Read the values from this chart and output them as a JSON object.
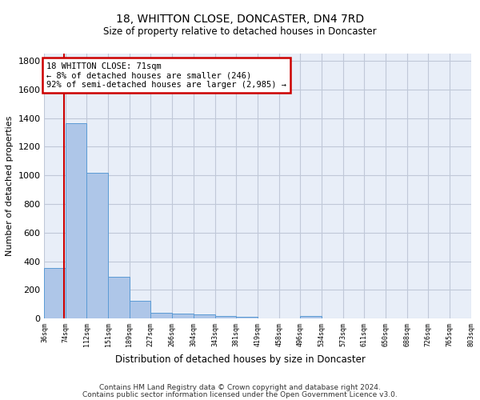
{
  "title": "18, WHITTON CLOSE, DONCASTER, DN4 7RD",
  "subtitle": "Size of property relative to detached houses in Doncaster",
  "xlabel": "Distribution of detached houses by size in Doncaster",
  "ylabel": "Number of detached properties",
  "footer_line1": "Contains HM Land Registry data © Crown copyright and database right 2024.",
  "footer_line2": "Contains public sector information licensed under the Open Government Licence v3.0.",
  "annotation_title": "18 WHITTON CLOSE: 71sqm",
  "annotation_line1": "← 8% of detached houses are smaller (246)",
  "annotation_line2": "92% of semi-detached houses are larger (2,985) →",
  "property_size": 71,
  "bar_edges": [
    36,
    74,
    112,
    151,
    189,
    227,
    266,
    304,
    343,
    381,
    419,
    458,
    496,
    534,
    573,
    611,
    650,
    688,
    726,
    765,
    803
  ],
  "bar_heights": [
    355,
    1365,
    1020,
    290,
    125,
    40,
    35,
    30,
    20,
    15,
    0,
    0,
    20,
    0,
    0,
    0,
    0,
    0,
    0,
    0
  ],
  "bar_color": "#aec6e8",
  "bar_edge_color": "#5b9bd5",
  "vline_color": "#cc0000",
  "annotation_box_color": "#cc0000",
  "background_color": "#e8eef8",
  "grid_color": "#c0c8d8",
  "ylim": [
    0,
    1850
  ],
  "yticks": [
    0,
    200,
    400,
    600,
    800,
    1000,
    1200,
    1400,
    1600,
    1800
  ]
}
